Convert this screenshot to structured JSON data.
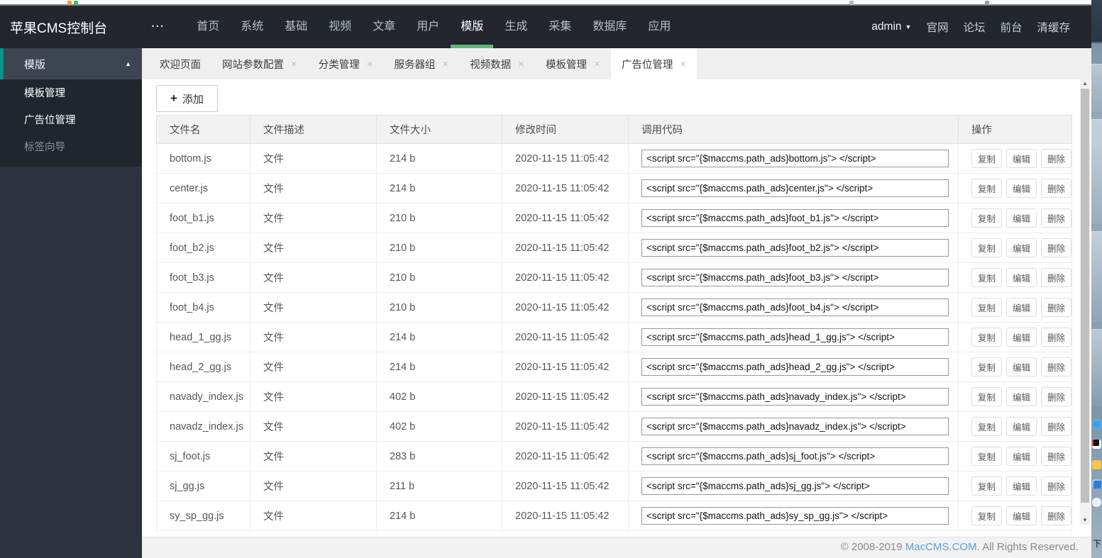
{
  "topbar": {
    "title": "苹果CMS控制台",
    "more_icon": "···",
    "nav": [
      {
        "label": "首页",
        "active": false
      },
      {
        "label": "系统",
        "active": false
      },
      {
        "label": "基础",
        "active": false
      },
      {
        "label": "视频",
        "active": false
      },
      {
        "label": "文章",
        "active": false
      },
      {
        "label": "用户",
        "active": false
      },
      {
        "label": "模版",
        "active": true
      },
      {
        "label": "生成",
        "active": false
      },
      {
        "label": "采集",
        "active": false
      },
      {
        "label": "数据库",
        "active": false
      },
      {
        "label": "应用",
        "active": false
      }
    ],
    "user": "admin",
    "right_links": [
      "官网",
      "论坛",
      "前台",
      "清缓存"
    ]
  },
  "sidebar": {
    "section": {
      "label": "模版"
    },
    "items": [
      {
        "label": "模板管理",
        "dim": false
      },
      {
        "label": "广告位管理",
        "dim": false
      },
      {
        "label": "标签向导",
        "dim": true
      }
    ]
  },
  "tabs": [
    {
      "label": "欢迎页面",
      "closable": false,
      "active": false
    },
    {
      "label": "网站参数配置",
      "closable": true,
      "active": false
    },
    {
      "label": "分类管理",
      "closable": true,
      "active": false
    },
    {
      "label": "服务器组",
      "closable": true,
      "active": false
    },
    {
      "label": "视频数据",
      "closable": true,
      "active": false
    },
    {
      "label": "模板管理",
      "closable": true,
      "active": false
    },
    {
      "label": "广告位管理",
      "closable": true,
      "active": true
    }
  ],
  "toolbar": {
    "add_label": "添加"
  },
  "table": {
    "headers": [
      "文件名",
      "文件描述",
      "文件大小",
      "修改时间",
      "调用代码",
      "操作"
    ],
    "rows": [
      {
        "name": "bottom.js",
        "desc": "文件",
        "size": "214 b",
        "time": "2020-11-15 11:05:42",
        "code": "<script src=\"{$maccms.path_ads}bottom.js\"> </script>"
      },
      {
        "name": "center.js",
        "desc": "文件",
        "size": "214 b",
        "time": "2020-11-15 11:05:42",
        "code": "<script src=\"{$maccms.path_ads}center.js\"> </script>"
      },
      {
        "name": "foot_b1.js",
        "desc": "文件",
        "size": "210 b",
        "time": "2020-11-15 11:05:42",
        "code": "<script src=\"{$maccms.path_ads}foot_b1.js\"> </script>"
      },
      {
        "name": "foot_b2.js",
        "desc": "文件",
        "size": "210 b",
        "time": "2020-11-15 11:05:42",
        "code": "<script src=\"{$maccms.path_ads}foot_b2.js\"> </script>"
      },
      {
        "name": "foot_b3.js",
        "desc": "文件",
        "size": "210 b",
        "time": "2020-11-15 11:05:42",
        "code": "<script src=\"{$maccms.path_ads}foot_b3.js\"> </script>"
      },
      {
        "name": "foot_b4.js",
        "desc": "文件",
        "size": "210 b",
        "time": "2020-11-15 11:05:42",
        "code": "<script src=\"{$maccms.path_ads}foot_b4.js\"> </script>"
      },
      {
        "name": "head_1_gg.js",
        "desc": "文件",
        "size": "214 b",
        "time": "2020-11-15 11:05:42",
        "code": "<script src=\"{$maccms.path_ads}head_1_gg.js\"> </script>"
      },
      {
        "name": "head_2_gg.js",
        "desc": "文件",
        "size": "214 b",
        "time": "2020-11-15 11:05:42",
        "code": "<script src=\"{$maccms.path_ads}head_2_gg.js\"> </script>"
      },
      {
        "name": "navady_index.js",
        "desc": "文件",
        "size": "402 b",
        "time": "2020-11-15 11:05:42",
        "code": "<script src=\"{$maccms.path_ads}navady_index.js\"> </script>"
      },
      {
        "name": "navadz_index.js",
        "desc": "文件",
        "size": "402 b",
        "time": "2020-11-15 11:05:42",
        "code": "<script src=\"{$maccms.path_ads}navadz_index.js\"> </script>"
      },
      {
        "name": "sj_foot.js",
        "desc": "文件",
        "size": "283 b",
        "time": "2020-11-15 11:05:42",
        "code": "<script src=\"{$maccms.path_ads}sj_foot.js\"> </script>"
      },
      {
        "name": "sj_gg.js",
        "desc": "文件",
        "size": "211 b",
        "time": "2020-11-15 11:05:42",
        "code": "<script src=\"{$maccms.path_ads}sj_gg.js\"> </script>"
      },
      {
        "name": "sy_sp_gg.js",
        "desc": "文件",
        "size": "214 b",
        "time": "2020-11-15 11:05:42",
        "code": "<script src=\"{$maccms.path_ads}sy_sp_gg.js\"> </script>"
      }
    ]
  },
  "actions": [
    "复制",
    "编辑",
    "删除"
  ],
  "footer": {
    "prefix": "© 2008-2019 ",
    "link": "MacCMS.COM.",
    "suffix": " All Rights Reserved."
  },
  "icons": {
    "caret_down": "▼",
    "collapse_up": "▲",
    "close": "×",
    "plus": "+",
    "scroll_up": "▲",
    "scroll_down": "▼"
  },
  "desktop_strip": {
    "label": "下"
  },
  "colors": {
    "accent_green": "#5FB878",
    "sidebar_teal": "#009688",
    "topbar_bg": "#23262D",
    "link_blue": "#5B9FD8"
  }
}
